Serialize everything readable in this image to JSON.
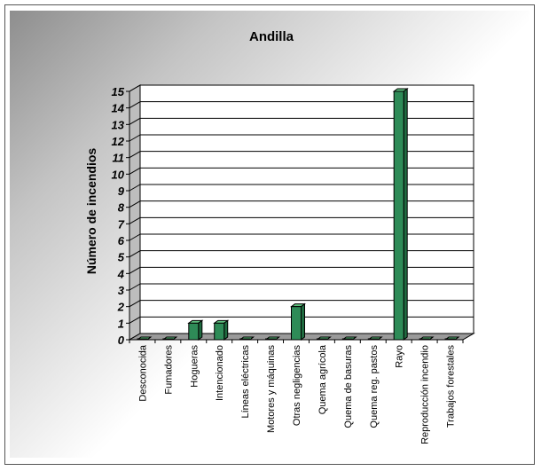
{
  "chart_data": {
    "type": "bar",
    "title": "Andilla",
    "xlabel": "",
    "ylabel": "Número de incendios",
    "ylim": [
      0,
      15
    ],
    "yticks": [
      0,
      1,
      2,
      3,
      4,
      5,
      6,
      7,
      8,
      9,
      10,
      11,
      12,
      13,
      14,
      15
    ],
    "grid": true,
    "legend": "none",
    "bar_color": "#2e8b57",
    "categories": [
      "Desconocida",
      "Fumadores",
      "Hogueras",
      "Intencionado",
      "Líneas eléctricas",
      "Motores y máquinas",
      "Otras negligencias",
      "Quema agrícola",
      "Quema de basuras",
      "Quema reg. pastos",
      "Rayo",
      "Reproducción incendio",
      "Trabajos forestales"
    ],
    "values": [
      0,
      0,
      1,
      1,
      0,
      0,
      2,
      0,
      0,
      0,
      15,
      0,
      0
    ]
  }
}
